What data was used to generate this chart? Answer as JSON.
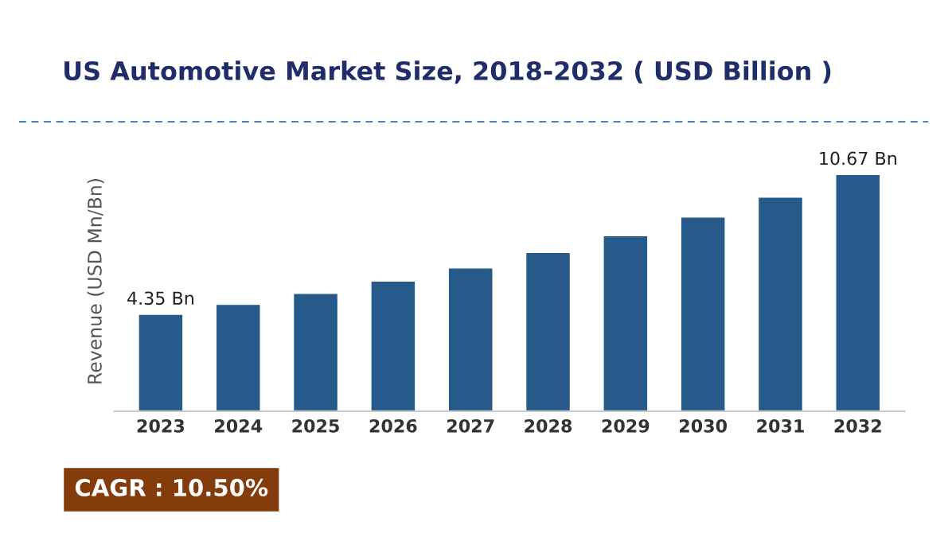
{
  "chart_data": {
    "type": "bar",
    "title": "US Automotive Market Size, 2018-2032 ( USD Billion )",
    "ylabel": "Revenue (USD Mn/Bn)",
    "categories": [
      "2023",
      "2024",
      "2025",
      "2026",
      "2027",
      "2028",
      "2029",
      "2030",
      "2031",
      "2032"
    ],
    "values": [
      4.35,
      4.8,
      5.3,
      5.85,
      6.45,
      7.15,
      7.9,
      8.75,
      9.65,
      10.67
    ],
    "value_labels": [
      "4.35 Bn",
      null,
      null,
      null,
      null,
      null,
      null,
      null,
      null,
      "10.67 Bn"
    ],
    "color": "#255a8a",
    "grid": false,
    "legend": false,
    "annotations": [
      "CAGR : 10.50%"
    ]
  }
}
